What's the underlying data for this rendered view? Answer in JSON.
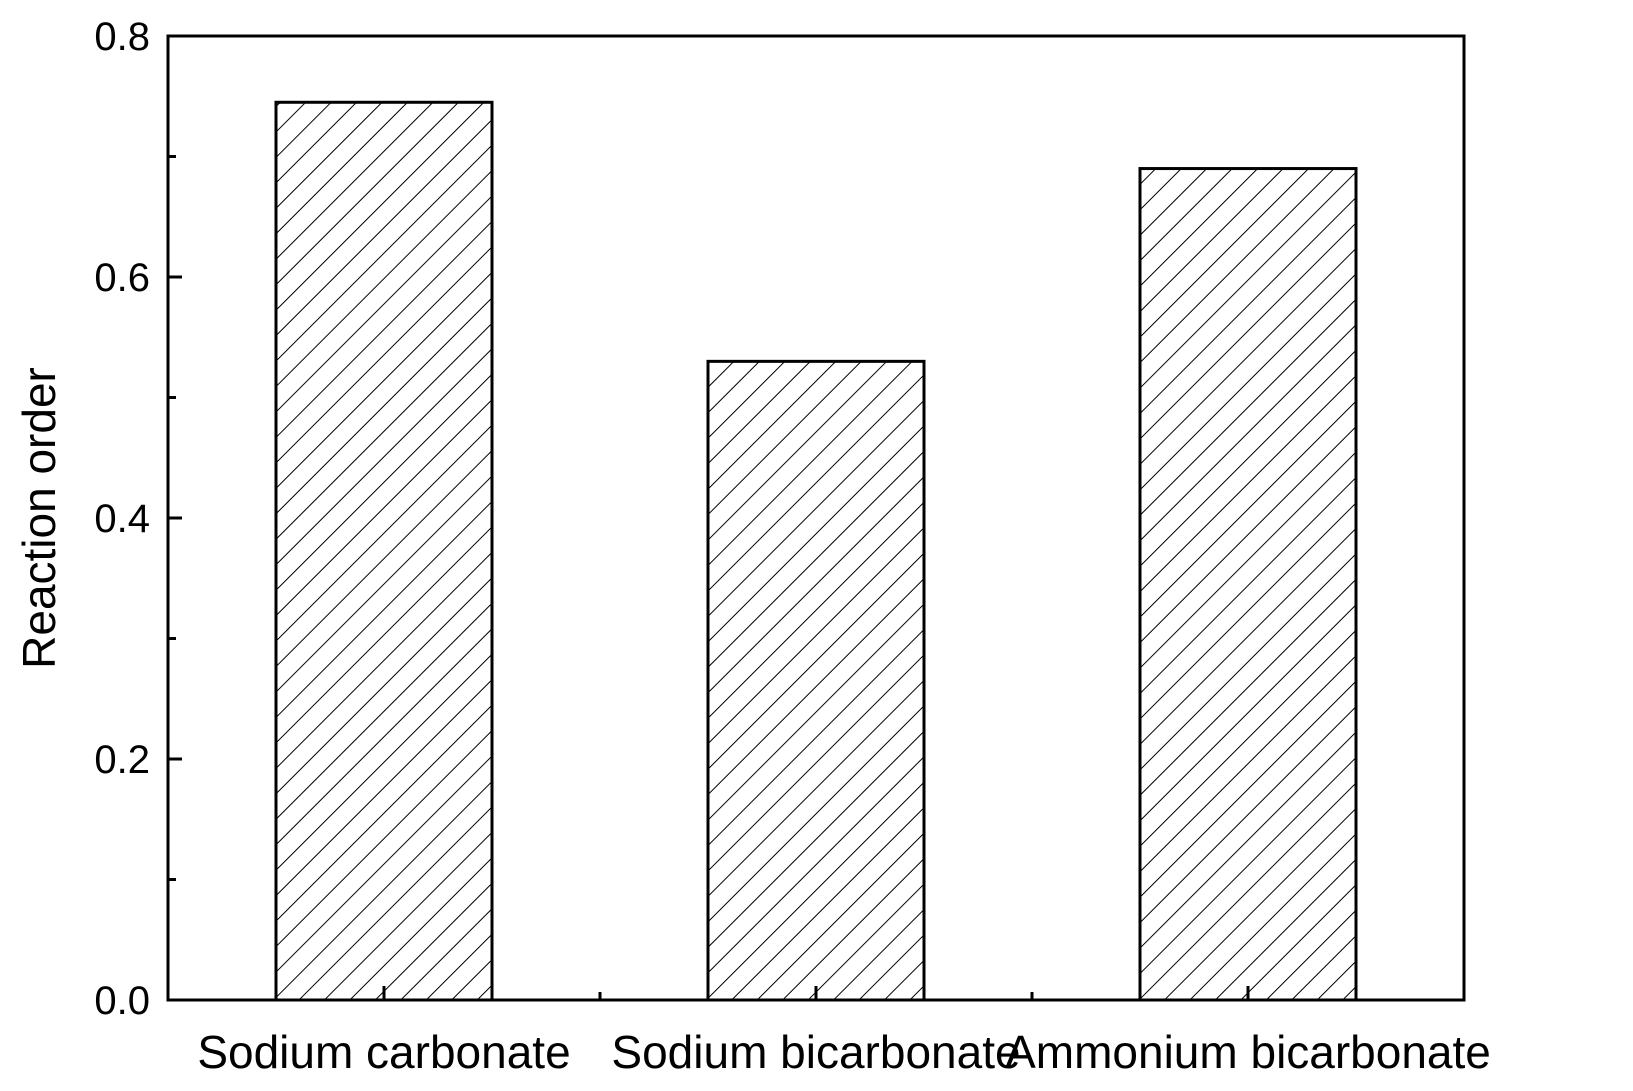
{
  "chart_data": {
    "type": "bar",
    "categories": [
      "Sodium carbonate",
      "Sodium bicarbonate",
      "Ammonium bicarbonate"
    ],
    "values": [
      0.745,
      0.53,
      0.69
    ],
    "xlabel": "",
    "ylabel": "Reaction order",
    "ylim": [
      0.0,
      0.8
    ],
    "yticks": [
      "0.0",
      "0.2",
      "0.4",
      "0.6",
      "0.8"
    ],
    "grid": false,
    "bar_fill": "hatched",
    "bar_color": "#000000"
  }
}
